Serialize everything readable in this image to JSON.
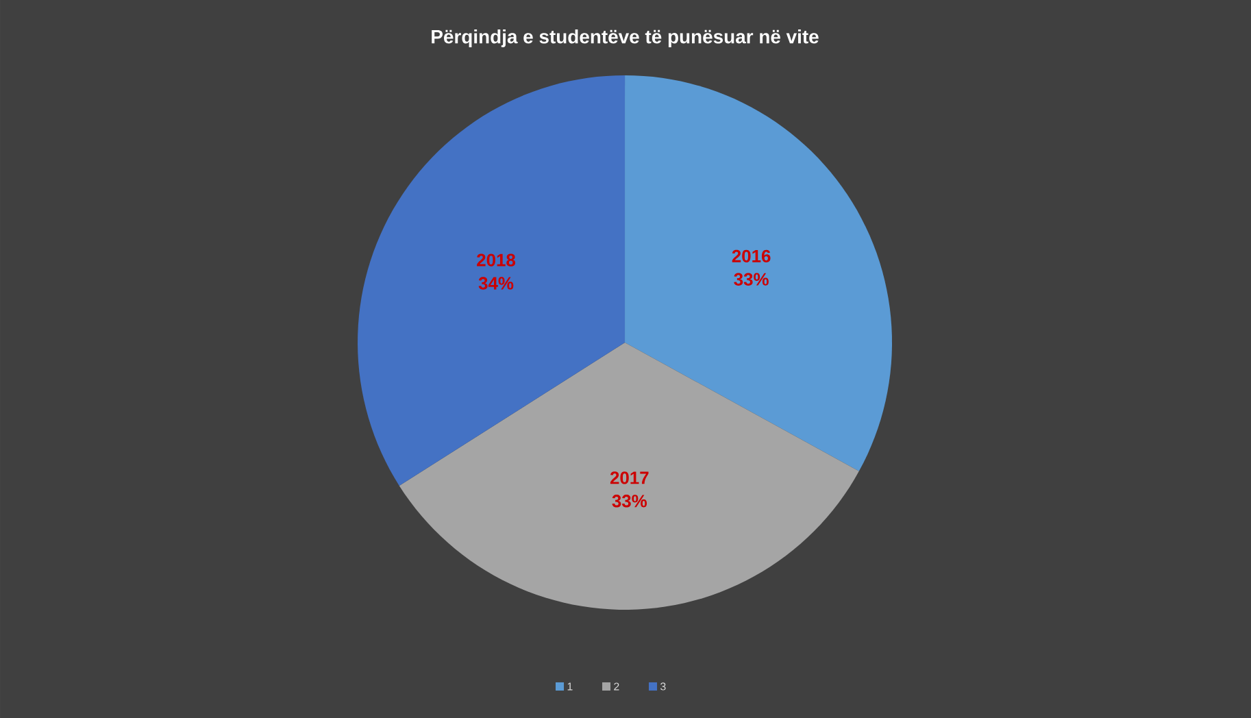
{
  "chart_data": {
    "type": "pie",
    "title": "Përqindja e studentëve të punësuar në vite",
    "categories": [
      "1",
      "2",
      "3"
    ],
    "values": [
      33,
      33,
      34
    ],
    "colors": [
      "#5b9bd5",
      "#a5a5a5",
      "#4472c4"
    ],
    "value_labels": [
      "2016 33%",
      "2017 33%",
      "2018 34%"
    ],
    "legend": "bottom"
  }
}
